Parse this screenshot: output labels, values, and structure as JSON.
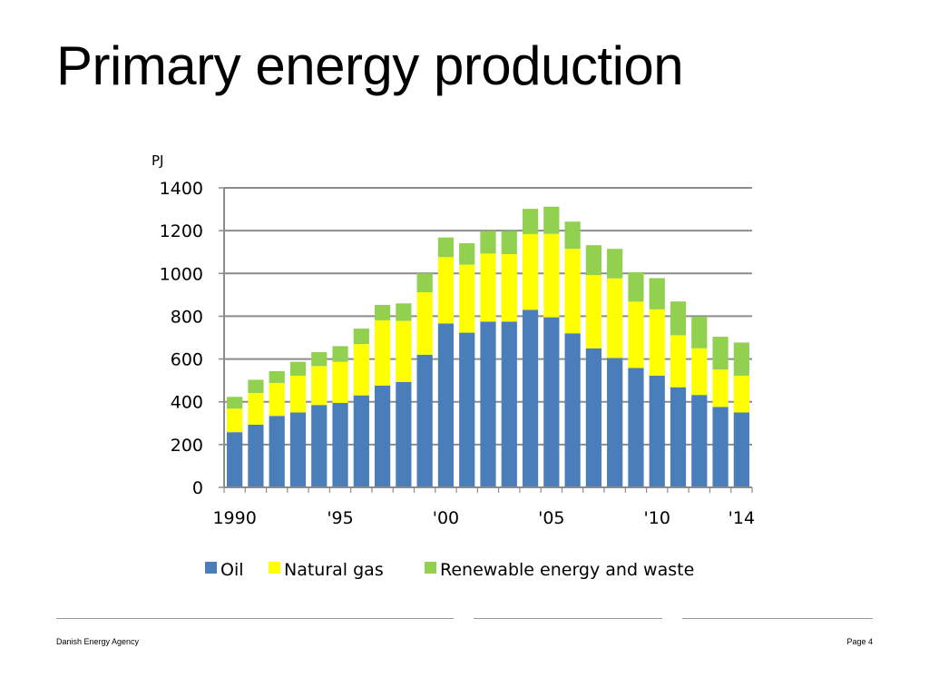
{
  "slide": {
    "title": "Primary energy production"
  },
  "footer": {
    "left": "Danish Energy Agency",
    "right": "Page 4"
  },
  "chart_data": {
    "type": "bar",
    "stacked": true,
    "unit_label": "PJ",
    "ylim": [
      0,
      1400
    ],
    "yticks": [
      "0",
      "200",
      "400",
      "600",
      "800",
      "1000",
      "1200",
      "1400"
    ],
    "grid": true,
    "legend_position": "bottom",
    "categories": [
      1990,
      1991,
      1992,
      1993,
      1994,
      1995,
      1996,
      1997,
      1998,
      1999,
      2000,
      2001,
      2002,
      2003,
      2004,
      2005,
      2006,
      2007,
      2008,
      2009,
      2010,
      2011,
      2012,
      2013,
      2014
    ],
    "xtick_labels": [
      {
        "year": 1990,
        "label": "1990"
      },
      {
        "year": 1995,
        "label": "'95"
      },
      {
        "year": 2000,
        "label": "'00"
      },
      {
        "year": 2005,
        "label": "'05"
      },
      {
        "year": 2010,
        "label": "'10"
      },
      {
        "year": 2014,
        "label": "'14"
      }
    ],
    "series": [
      {
        "name": "Oil",
        "color": "#4a7ebb",
        "values": [
          258,
          293,
          334,
          350,
          385,
          395,
          430,
          476,
          493,
          620,
          766,
          723,
          775,
          775,
          830,
          795,
          720,
          650,
          605,
          558,
          522,
          468,
          432,
          376,
          350
        ]
      },
      {
        "name": "Natural gas",
        "color": "#ffff00",
        "values": [
          110,
          148,
          154,
          172,
          182,
          192,
          240,
          305,
          285,
          292,
          310,
          318,
          318,
          315,
          354,
          390,
          395,
          342,
          372,
          310,
          310,
          243,
          218,
          175,
          172
        ]
      },
      {
        "name": "Renewable energy and waste",
        "color": "#92d050",
        "values": [
          55,
          62,
          55,
          65,
          65,
          73,
          72,
          72,
          82,
          88,
          92,
          100,
          105,
          108,
          118,
          127,
          127,
          140,
          138,
          138,
          146,
          158,
          148,
          153,
          155
        ]
      }
    ]
  }
}
